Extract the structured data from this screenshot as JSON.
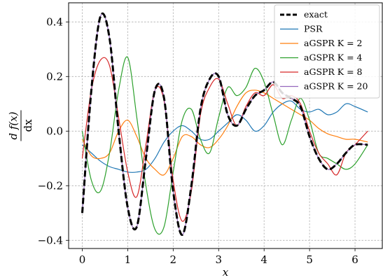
{
  "chart_data": {
    "type": "line",
    "xlabel": "x",
    "ylabel_top": "d f(x)",
    "ylabel_bottom": "dx",
    "xlim": [
      -0.3,
      6.6
    ],
    "ylim": [
      -0.43,
      0.47
    ],
    "xticks": [
      0,
      1,
      2,
      3,
      4,
      5,
      6
    ],
    "yticks": [
      -0.4,
      -0.2,
      0.0,
      0.2,
      0.4
    ],
    "ytick_labels": [
      "−0.4",
      "−0.2",
      "0.0",
      "0.2",
      "0.4"
    ],
    "grid": true,
    "legend_position": "top-right",
    "x": [
      0.0,
      0.2,
      0.4,
      0.6,
      0.8,
      1.0,
      1.2,
      1.4,
      1.6,
      1.8,
      2.0,
      2.2,
      2.4,
      2.6,
      2.8,
      3.0,
      3.2,
      3.4,
      3.6,
      3.8,
      4.0,
      4.2,
      4.4,
      4.6,
      4.8,
      5.0,
      5.2,
      5.4,
      5.6,
      5.8,
      6.0,
      6.28
    ],
    "series": [
      {
        "name": "exact",
        "color": "#000000",
        "dashed": true,
        "values": [
          -0.3,
          0.15,
          0.42,
          0.34,
          0.0,
          -0.28,
          -0.35,
          -0.1,
          0.15,
          0.12,
          -0.22,
          -0.38,
          -0.2,
          0.08,
          0.19,
          0.2,
          0.06,
          0.02,
          0.08,
          0.13,
          0.15,
          0.18,
          0.14,
          0.12,
          0.09,
          -0.02,
          -0.1,
          -0.14,
          -0.12,
          -0.08,
          -0.05,
          -0.05
        ]
      },
      {
        "name": "PSR",
        "color": "#1f77b4",
        "values": [
          -0.05,
          -0.08,
          -0.11,
          -0.13,
          -0.14,
          -0.15,
          -0.15,
          -0.14,
          -0.1,
          -0.04,
          0.0,
          0.02,
          0.0,
          -0.03,
          -0.03,
          0.0,
          0.03,
          0.06,
          0.04,
          0.0,
          0.02,
          0.07,
          0.1,
          0.11,
          0.08,
          0.07,
          0.08,
          0.06,
          0.07,
          0.1,
          0.09,
          0.07
        ]
      },
      {
        "name": "aGSPR K = 2",
        "color": "#ff7f0e",
        "values": [
          -0.03,
          -0.09,
          -0.1,
          -0.08,
          0.0,
          0.04,
          -0.02,
          -0.1,
          -0.14,
          -0.16,
          -0.1,
          -0.02,
          -0.02,
          -0.05,
          -0.06,
          -0.03,
          0.02,
          0.09,
          0.14,
          0.15,
          0.14,
          0.12,
          0.1,
          0.08,
          0.06,
          0.04,
          0.01,
          -0.01,
          -0.02,
          -0.03,
          -0.03,
          -0.04
        ]
      },
      {
        "name": "aGSPR K = 4",
        "color": "#2ca02c",
        "values": [
          0.0,
          -0.18,
          -0.22,
          -0.08,
          0.15,
          0.27,
          0.05,
          -0.2,
          -0.36,
          -0.35,
          -0.15,
          0.04,
          0.08,
          -0.03,
          -0.08,
          0.05,
          0.16,
          0.13,
          0.16,
          0.23,
          0.18,
          0.06,
          -0.05,
          0.04,
          0.12,
          0.04,
          -0.08,
          -0.1,
          -0.12,
          -0.14,
          -0.12,
          -0.05
        ]
      },
      {
        "name": "aGSPR K = 8",
        "color": "#d62728",
        "values": [
          -0.1,
          0.15,
          0.26,
          0.24,
          0.05,
          -0.15,
          -0.24,
          -0.05,
          0.15,
          0.11,
          -0.18,
          -0.33,
          -0.22,
          0.06,
          0.16,
          0.19,
          0.1,
          0.02,
          0.09,
          0.14,
          0.13,
          0.17,
          0.12,
          0.13,
          0.1,
          0.0,
          -0.08,
          -0.12,
          -0.16,
          -0.08,
          -0.05,
          0.0
        ]
      },
      {
        "name": "aGSPR K = 20",
        "color": "#9467bd",
        "values": [
          -0.3,
          0.15,
          0.42,
          0.34,
          0.0,
          -0.28,
          -0.35,
          -0.1,
          0.15,
          0.12,
          -0.22,
          -0.38,
          -0.2,
          0.08,
          0.19,
          0.2,
          0.06,
          0.02,
          0.08,
          0.13,
          0.15,
          0.18,
          0.14,
          0.12,
          0.09,
          -0.02,
          -0.1,
          -0.14,
          -0.12,
          -0.08,
          -0.05,
          -0.05
        ]
      }
    ],
    "legend": [
      {
        "label": "exact",
        "series": 0
      },
      {
        "label": "PSR",
        "series": 1
      },
      {
        "label": "aGSPR K = 2",
        "series": 2
      },
      {
        "label": "aGSPR K = 4",
        "series": 3
      },
      {
        "label": "aGSPR K = 8",
        "series": 4
      },
      {
        "label": "aGSPR K = 20",
        "series": 5
      }
    ]
  }
}
